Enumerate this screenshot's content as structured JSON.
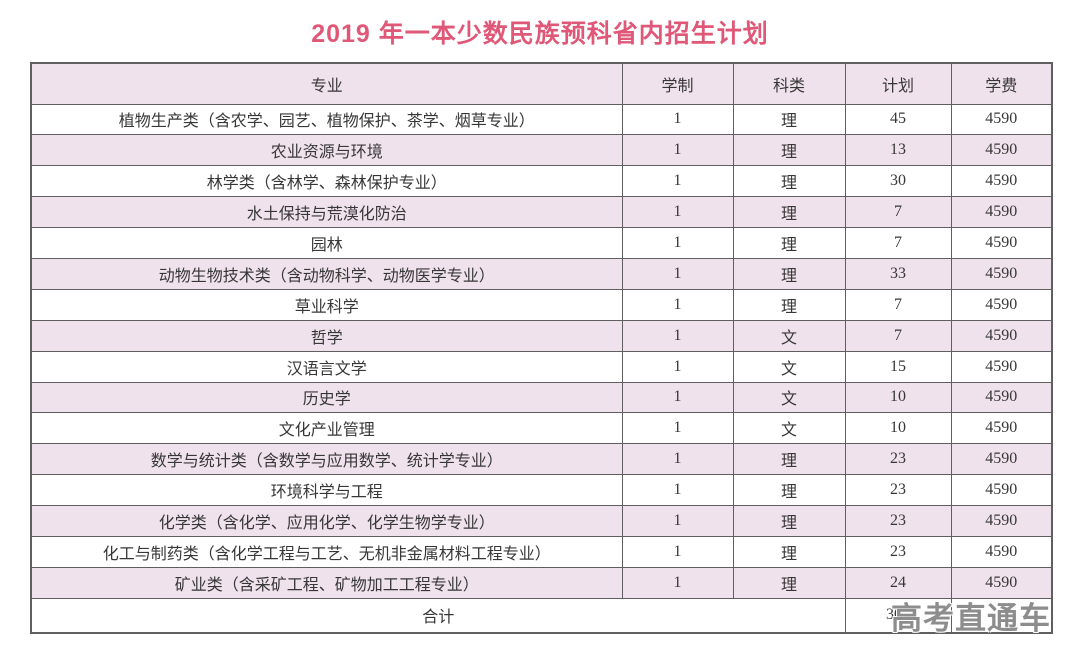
{
  "title": "2019 年一本少数民族预科省内招生计划",
  "watermark": "高考直通车",
  "colors": {
    "title": "#e05878",
    "row_pink": "#f0e2ec",
    "border": "#5f5f5f",
    "text": "#373737",
    "watermark": "#8d8d8d"
  },
  "table": {
    "headers": [
      "专业",
      "学制",
      "科类",
      "计划",
      "学费"
    ],
    "rows": [
      {
        "major": "植物生产类（含农学、园艺、植物保护、茶学、烟草专业）",
        "years": "1",
        "category": "理",
        "plan": "45",
        "fee": "4590"
      },
      {
        "major": "农业资源与环境",
        "years": "1",
        "category": "理",
        "plan": "13",
        "fee": "4590"
      },
      {
        "major": "林学类（含林学、森林保护专业）",
        "years": "1",
        "category": "理",
        "plan": "30",
        "fee": "4590"
      },
      {
        "major": "水土保持与荒漠化防治",
        "years": "1",
        "category": "理",
        "plan": "7",
        "fee": "4590"
      },
      {
        "major": "园林",
        "years": "1",
        "category": "理",
        "plan": "7",
        "fee": "4590"
      },
      {
        "major": "动物生物技术类（含动物科学、动物医学专业）",
        "years": "1",
        "category": "理",
        "plan": "33",
        "fee": "4590"
      },
      {
        "major": "草业科学",
        "years": "1",
        "category": "理",
        "plan": "7",
        "fee": "4590"
      },
      {
        "major": "哲学",
        "years": "1",
        "category": "文",
        "plan": "7",
        "fee": "4590"
      },
      {
        "major": "汉语言文学",
        "years": "1",
        "category": "文",
        "plan": "15",
        "fee": "4590"
      },
      {
        "major": "历史学",
        "years": "1",
        "category": "文",
        "plan": "10",
        "fee": "4590"
      },
      {
        "major": "文化产业管理",
        "years": "1",
        "category": "文",
        "plan": "10",
        "fee": "4590"
      },
      {
        "major": "数学与统计类（含数学与应用数学、统计学专业）",
        "years": "1",
        "category": "理",
        "plan": "23",
        "fee": "4590"
      },
      {
        "major": "环境科学与工程",
        "years": "1",
        "category": "理",
        "plan": "23",
        "fee": "4590"
      },
      {
        "major": "化学类（含化学、应用化学、化学生物学专业）",
        "years": "1",
        "category": "理",
        "plan": "23",
        "fee": "4590"
      },
      {
        "major": "化工与制药类（含化学工程与工艺、无机非金属材料工程专业）",
        "years": "1",
        "category": "理",
        "plan": "23",
        "fee": "4590"
      },
      {
        "major": "矿业类（含采矿工程、矿物加工工程专业）",
        "years": "1",
        "category": "理",
        "plan": "24",
        "fee": "4590"
      }
    ],
    "total": {
      "label": "合计",
      "plan": "300",
      "fee": ""
    }
  }
}
